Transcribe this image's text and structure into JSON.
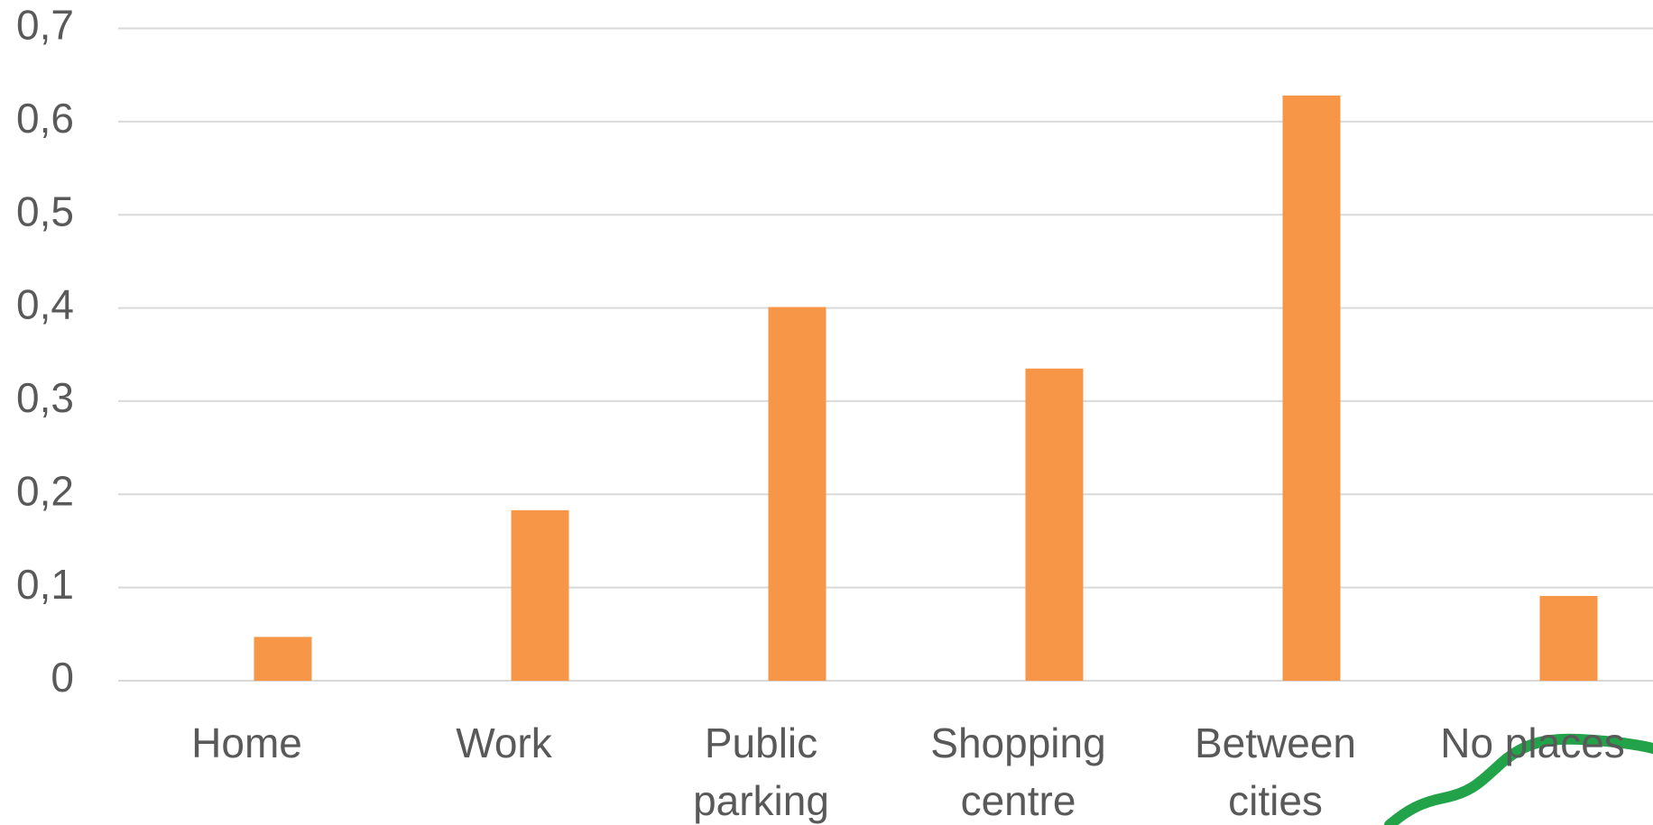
{
  "chart_data": {
    "type": "bar",
    "categories": [
      "Home",
      "Work",
      "Public parking",
      "Shopping centre",
      "Between cities",
      "No places"
    ],
    "values": [
      0.047,
      0.183,
      0.401,
      0.335,
      0.628,
      0.091
    ],
    "color": "#f79646",
    "ylim": [
      0,
      0.7
    ],
    "yticks": [
      0,
      {
        "value": 0.1,
        "label": "0,1"
      },
      {
        "value": 0.2,
        "label": "0,2"
      },
      {
        "value": 0.3,
        "label": "0,3"
      },
      {
        "value": 0.4,
        "label": "0,4"
      },
      {
        "value": 0.5,
        "label": "0,5"
      },
      {
        "value": 0.6,
        "label": "0,6"
      },
      {
        "value": 0.7,
        "label": "0,7"
      }
    ],
    "grid": true
  }
}
